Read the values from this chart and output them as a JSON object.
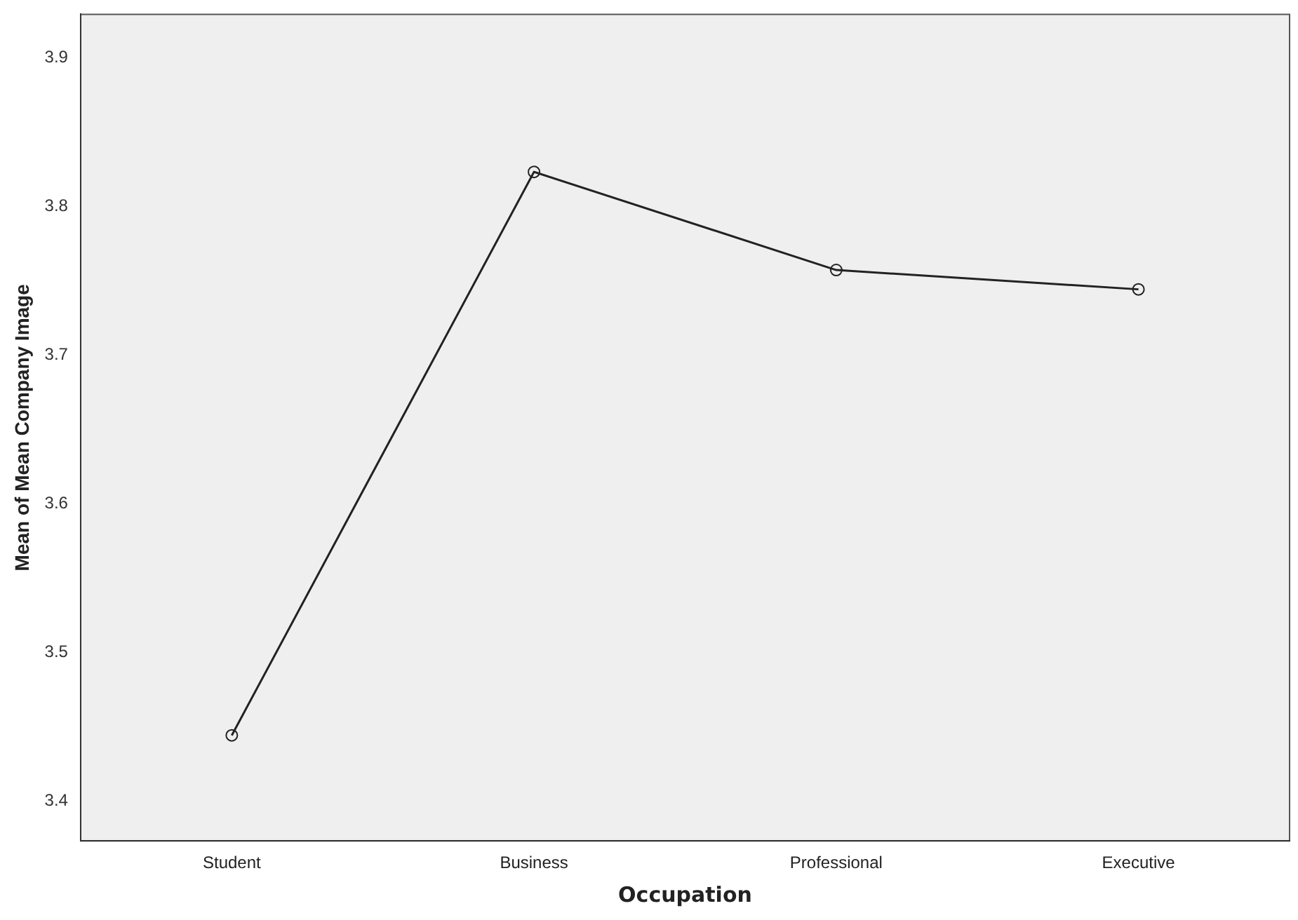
{
  "chart_data": {
    "type": "line",
    "xlabel": "Occupation",
    "ylabel": "Mean of Mean Company Image",
    "categories": [
      "Student",
      "Business",
      "Professional",
      "Executive"
    ],
    "series": [
      {
        "color": "#222222",
        "values": [
          3.444,
          3.823,
          3.757,
          3.744
        ]
      }
    ],
    "ylim": [
      3.373,
      3.929
    ],
    "yticks": [
      3.4,
      3.5,
      3.6,
      3.7,
      3.8,
      3.9
    ],
    "grid": false,
    "legend": false,
    "marker": "circle",
    "line_style": "solid"
  }
}
